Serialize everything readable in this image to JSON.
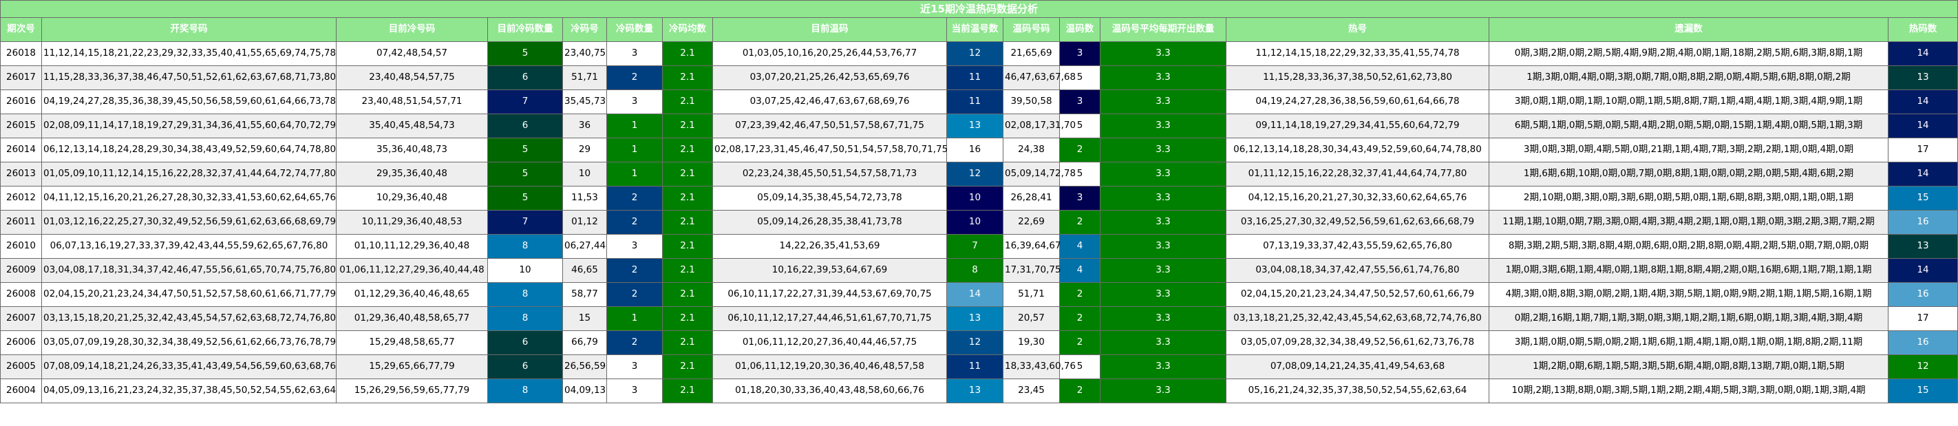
{
  "title": "近15期冷温热码数据分析",
  "columns": [
    "期次号",
    "开奖号码",
    "目前冷号码",
    "目前冷码数量",
    "冷码号",
    "冷码数量",
    "冷码均数",
    "目前温码",
    "当前温号数",
    "温码号码",
    "温码数",
    "温码号平均每期开出数量",
    "热号",
    "遗漏数",
    "热码数"
  ],
  "colors": {
    "header_bg": "#8fe68f",
    "avg_green": "#008000",
    "scale": {
      "5": "#006600",
      "6": "#003c3c",
      "7": "#001a66",
      "8": "#0077b0",
      "10": "#ffffff",
      "11": "#00347a",
      "12": "#004f8c",
      "13": "#0082b8",
      "14": "#4ea0cc",
      "16": "#ffffff",
      "7w": "#007f00",
      "3k": "#000050",
      "4k": "#0072a8"
    }
  },
  "rows": [
    {
      "period": "26018",
      "draw": "11,12,14,15,18,21,22,23,29,32,33,35,40,41,55,65,69,74,75,78",
      "cold_nums": "07,42,48,54,57",
      "cold_count": "5",
      "cold_hit": "23,40,75",
      "cold_hit_count": "3",
      "cold_avg": "2.1",
      "warm_nums": "01,03,05,10,16,20,25,26,44,53,76,77",
      "warm_count": "12",
      "warm_hit": "21,65,69",
      "warm_hit_count": "3",
      "warm_avg": "3.3",
      "hot": "11,12,14,15,18,22,29,32,33,35,41,55,74,78",
      "miss": "0期,3期,2期,0期,2期,5期,4期,9期,2期,4期,0期,1期,18期,2期,5期,6期,3期,8期,1期",
      "hot_count": "14"
    },
    {
      "period": "26017",
      "draw": "11,15,28,33,36,37,38,46,47,50,51,52,61,62,63,67,68,71,73,80",
      "cold_nums": "23,40,48,54,57,75",
      "cold_count": "6",
      "cold_hit": "51,71",
      "cold_hit_count": "2",
      "cold_avg": "2.1",
      "warm_nums": "03,07,20,21,25,26,42,53,65,69,76",
      "warm_count": "11",
      "warm_hit": "46,47,63,67,68",
      "warm_hit_count": "5",
      "warm_avg": "3.3",
      "hot": "11,15,28,33,36,37,38,50,52,61,62,73,80",
      "miss": "1期,3期,0期,4期,0期,3期,0期,7期,0期,8期,2期,0期,4期,5期,6期,8期,0期,2期",
      "hot_count": "13"
    },
    {
      "period": "26016",
      "draw": "04,19,24,27,28,35,36,38,39,45,50,56,58,59,60,61,64,66,73,78",
      "cold_nums": "23,40,48,51,54,57,71",
      "cold_count": "7",
      "cold_hit": "35,45,73",
      "cold_hit_count": "3",
      "cold_avg": "2.1",
      "warm_nums": "03,07,25,42,46,47,63,67,68,69,76",
      "warm_count": "11",
      "warm_hit": "39,50,58",
      "warm_hit_count": "3",
      "warm_avg": "3.3",
      "hot": "04,19,24,27,28,36,38,56,59,60,61,64,66,78",
      "miss": "3期,0期,1期,0期,1期,10期,0期,1期,5期,8期,7期,1期,4期,4期,1期,3期,4期,9期,1期",
      "hot_count": "14"
    },
    {
      "period": "26015",
      "draw": "02,08,09,11,14,17,18,19,27,29,31,34,36,41,55,60,64,70,72,79",
      "cold_nums": "35,40,45,48,54,73",
      "cold_count": "6",
      "cold_hit": "36",
      "cold_hit_count": "1",
      "cold_avg": "2.1",
      "warm_nums": "07,23,39,42,46,47,50,51,57,58,67,71,75",
      "warm_count": "13",
      "warm_hit": "02,08,17,31,70",
      "warm_hit_count": "5",
      "warm_avg": "3.3",
      "hot": "09,11,14,18,19,27,29,34,41,55,60,64,72,79",
      "miss": "6期,5期,1期,0期,5期,0期,5期,4期,2期,0期,5期,0期,15期,1期,4期,0期,5期,1期,3期",
      "hot_count": "14"
    },
    {
      "period": "26014",
      "draw": "06,12,13,14,18,24,28,29,30,34,38,43,49,52,59,60,64,74,78,80",
      "cold_nums": "35,36,40,48,73",
      "cold_count": "5",
      "cold_hit": "29",
      "cold_hit_count": "1",
      "cold_avg": "2.1",
      "warm_nums": "02,08,17,23,31,45,46,47,50,51,54,57,58,70,71,75",
      "warm_count": "16",
      "warm_hit": "24,38",
      "warm_hit_count": "2",
      "warm_avg": "3.3",
      "hot": "06,12,13,14,18,28,30,34,43,49,52,59,60,64,74,78,80",
      "miss": "3期,0期,3期,0期,4期,5期,0期,21期,1期,4期,7期,3期,2期,2期,1期,0期,4期,0期",
      "hot_count": "17"
    },
    {
      "period": "26013",
      "draw": "01,05,09,10,11,12,14,15,16,22,28,32,37,41,44,64,72,74,77,80",
      "cold_nums": "29,35,36,40,48",
      "cold_count": "5",
      "cold_hit": "10",
      "cold_hit_count": "1",
      "cold_avg": "2.1",
      "warm_nums": "02,23,24,38,45,50,51,54,57,58,71,73",
      "warm_count": "12",
      "warm_hit": "05,09,14,72,78",
      "warm_hit_count": "5",
      "warm_avg": "3.3",
      "hot": "01,11,12,15,16,22,28,32,37,41,44,64,74,77,80",
      "miss": "1期,6期,6期,10期,0期,0期,7期,0期,8期,1期,0期,0期,2期,0期,5期,4期,6期,2期",
      "hot_count": "14"
    },
    {
      "period": "26012",
      "draw": "04,11,12,15,16,20,21,26,27,28,30,32,33,41,53,60,62,64,65,76",
      "cold_nums": "10,29,36,40,48",
      "cold_count": "5",
      "cold_hit": "11,53",
      "cold_hit_count": "2",
      "cold_avg": "2.1",
      "warm_nums": "05,09,14,35,38,45,54,72,73,78",
      "warm_count": "10",
      "warm_hit": "26,28,41",
      "warm_hit_count": "3",
      "warm_avg": "3.3",
      "hot": "04,12,15,16,20,21,27,30,32,33,60,62,64,65,76",
      "miss": "2期,10期,0期,3期,0期,3期,6期,0期,5期,0期,1期,6期,8期,3期,0期,1期,0期,1期",
      "hot_count": "15"
    },
    {
      "period": "26011",
      "draw": "01,03,12,16,22,25,27,30,32,49,52,56,59,61,62,63,66,68,69,79",
      "cold_nums": "10,11,29,36,40,48,53",
      "cold_count": "7",
      "cold_hit": "01,12",
      "cold_hit_count": "2",
      "cold_avg": "2.1",
      "warm_nums": "05,09,14,26,28,35,38,41,73,78",
      "warm_count": "10",
      "warm_hit": "22,69",
      "warm_hit_count": "2",
      "warm_avg": "3.3",
      "hot": "03,16,25,27,30,32,49,52,56,59,61,62,63,66,68,79",
      "miss": "11期,1期,10期,0期,7期,3期,0期,4期,3期,4期,2期,1期,0期,1期,0期,3期,2期,3期,7期,2期",
      "hot_count": "16"
    },
    {
      "period": "26010",
      "draw": "06,07,13,16,19,27,33,37,39,42,43,44,55,59,62,65,67,76,80",
      "cold_nums": "01,10,11,12,29,36,40,48",
      "cold_count": "8",
      "cold_hit": "06,27,44",
      "cold_hit_count": "3",
      "cold_avg": "2.1",
      "warm_nums": "14,22,26,35,41,53,69",
      "warm_count": "7",
      "warm_hit": "16,39,64,67",
      "warm_hit_count": "4",
      "warm_avg": "3.3",
      "hot": "07,13,19,33,37,42,43,55,59,62,65,76,80",
      "miss": "8期,3期,2期,5期,3期,8期,4期,0期,6期,0期,2期,8期,0期,4期,2期,5期,0期,7期,0期,0期",
      "hot_count": "13"
    },
    {
      "period": "26009",
      "draw": "03,04,08,17,18,31,34,37,42,46,47,55,56,61,65,70,74,75,76,80",
      "cold_nums": "01,06,11,12,27,29,36,40,44,48",
      "cold_count": "10",
      "cold_hit": "46,65",
      "cold_hit_count": "2",
      "cold_avg": "2.1",
      "warm_nums": "10,16,22,39,53,64,67,69",
      "warm_count": "8",
      "warm_hit": "17,31,70,75",
      "warm_hit_count": "4",
      "warm_avg": "3.3",
      "hot": "03,04,08,18,34,37,42,47,55,56,61,74,76,80",
      "miss": "1期,0期,3期,6期,1期,4期,0期,1期,8期,1期,8期,4期,2期,0期,16期,6期,1期,7期,1期,1期",
      "hot_count": "14"
    },
    {
      "period": "26008",
      "draw": "02,04,15,20,21,23,24,34,47,50,51,52,57,58,60,61,66,71,77,79",
      "cold_nums": "01,12,29,36,40,46,48,65",
      "cold_count": "8",
      "cold_hit": "58,77",
      "cold_hit_count": "2",
      "cold_avg": "2.1",
      "warm_nums": "06,10,11,17,22,27,31,39,44,53,67,69,70,75",
      "warm_count": "14",
      "warm_hit": "51,71",
      "warm_hit_count": "2",
      "warm_avg": "3.3",
      "hot": "02,04,15,20,21,23,24,34,47,50,52,57,60,61,66,79",
      "miss": "4期,3期,0期,8期,3期,0期,2期,1期,4期,3期,5期,1期,0期,9期,2期,1期,1期,5期,16期,1期",
      "hot_count": "16"
    },
    {
      "period": "26007",
      "draw": "03,13,15,18,20,21,25,32,42,43,45,54,57,62,63,68,72,74,76,80",
      "cold_nums": "01,29,36,40,48,58,65,77",
      "cold_count": "8",
      "cold_hit": "15",
      "cold_hit_count": "1",
      "cold_avg": "2.1",
      "warm_nums": "06,10,11,12,17,27,44,46,51,61,67,70,71,75",
      "warm_count": "13",
      "warm_hit": "20,57",
      "warm_hit_count": "2",
      "warm_avg": "3.3",
      "hot": "03,13,18,21,25,32,42,43,45,54,62,63,68,72,74,76,80",
      "miss": "0期,2期,16期,1期,7期,1期,3期,0期,3期,1期,2期,1期,6期,0期,1期,3期,4期,3期,4期",
      "hot_count": "17"
    },
    {
      "period": "26006",
      "draw": "03,05,07,09,19,28,30,32,34,38,49,52,56,61,62,66,73,76,78,79",
      "cold_nums": "15,29,48,58,65,77",
      "cold_count": "6",
      "cold_hit": "66,79",
      "cold_hit_count": "2",
      "cold_avg": "2.1",
      "warm_nums": "01,06,11,12,20,27,36,40,44,46,57,75",
      "warm_count": "12",
      "warm_hit": "19,30",
      "warm_hit_count": "2",
      "warm_avg": "3.3",
      "hot": "03,05,07,09,28,32,34,38,49,52,56,61,62,73,76,78",
      "miss": "3期,1期,0期,0期,5期,0期,2期,1期,6期,1期,4期,1期,0期,1期,0期,1期,8期,2期,11期",
      "hot_count": "16"
    },
    {
      "period": "26005",
      "draw": "07,08,09,14,18,21,24,26,33,35,41,43,49,54,56,59,60,63,68,76",
      "cold_nums": "15,29,65,66,77,79",
      "cold_count": "6",
      "cold_hit": "26,56,59",
      "cold_hit_count": "3",
      "cold_avg": "2.1",
      "warm_nums": "01,06,11,12,19,20,30,36,40,46,48,57,58",
      "warm_count": "11",
      "warm_hit": "18,33,43,60,76",
      "warm_hit_count": "5",
      "warm_avg": "3.3",
      "hot": "07,08,09,14,21,24,35,41,49,54,63,68",
      "miss": "1期,2期,0期,6期,1期,5期,3期,5期,6期,4期,0期,8期,13期,7期,0期,1期,5期",
      "hot_count": "12"
    },
    {
      "period": "26004",
      "draw": "04,05,09,13,16,21,23,24,32,35,37,38,45,50,52,54,55,62,63,64",
      "cold_nums": "15,26,29,56,59,65,77,79",
      "cold_count": "8",
      "cold_hit": "04,09,13",
      "cold_hit_count": "3",
      "cold_avg": "2.1",
      "warm_nums": "01,18,20,30,33,36,40,43,48,58,60,66,76",
      "warm_count": "13",
      "warm_hit": "23,45",
      "warm_hit_count": "2",
      "warm_avg": "3.3",
      "hot": "05,16,21,24,32,35,37,38,50,52,54,55,62,63,64",
      "miss": "10期,2期,13期,8期,0期,3期,5期,1期,2期,2期,4期,5期,3期,3期,0期,0期,1期,3期,4期",
      "hot_count": "15"
    }
  ]
}
